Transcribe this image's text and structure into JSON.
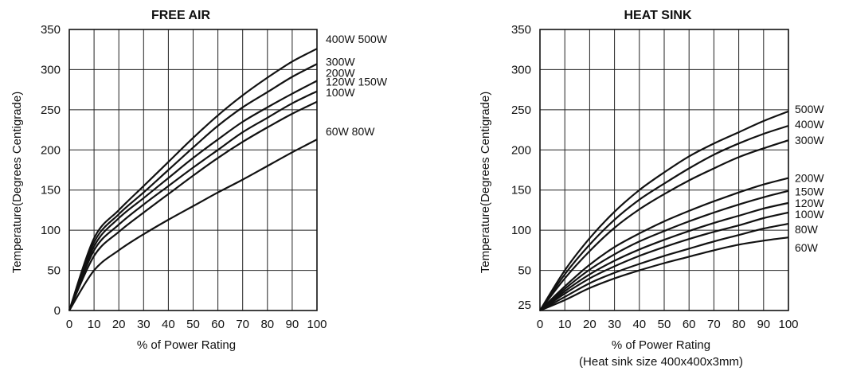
{
  "chart_data": [
    {
      "type": "line",
      "title": "FREE AIR",
      "xlabel": "% of Power Rating",
      "ylabel": "Temperature(Degrees Centigrade)",
      "note": "",
      "xlim": [
        0,
        100
      ],
      "ylim": [
        0,
        350
      ],
      "x_ticks": [
        0,
        10,
        20,
        30,
        40,
        50,
        60,
        70,
        80,
        90,
        100
      ],
      "y_ticks": [
        0,
        50,
        100,
        150,
        200,
        250,
        300,
        350
      ],
      "grid": true,
      "series": [
        {
          "name": "400W 500W",
          "x": [
            0,
            10,
            20,
            30,
            40,
            50,
            60,
            70,
            80,
            90,
            100
          ],
          "y": [
            0,
            90,
            125,
            155,
            185,
            215,
            243,
            268,
            290,
            310,
            326
          ]
        },
        {
          "name": "300W",
          "x": [
            0,
            10,
            20,
            30,
            40,
            50,
            60,
            70,
            80,
            90,
            100
          ],
          "y": [
            0,
            85,
            120,
            147,
            175,
            203,
            230,
            253,
            272,
            291,
            307
          ]
        },
        {
          "name": "200W",
          "x": [
            0,
            10,
            20,
            30,
            40,
            50,
            60,
            70,
            80,
            90,
            100
          ],
          "y": [
            0,
            80,
            115,
            140,
            165,
            190,
            213,
            235,
            253,
            270,
            286
          ]
        },
        {
          "name": "120W 150W",
          "x": [
            0,
            10,
            20,
            30,
            40,
            50,
            60,
            70,
            80,
            90,
            100
          ],
          "y": [
            0,
            75,
            107,
            132,
            155,
            178,
            200,
            222,
            240,
            258,
            273
          ]
        },
        {
          "name": "100W",
          "x": [
            0,
            10,
            20,
            30,
            40,
            50,
            60,
            70,
            80,
            90,
            100
          ],
          "y": [
            0,
            68,
            98,
            122,
            145,
            168,
            190,
            210,
            228,
            245,
            260
          ]
        },
        {
          "name": "60W 80W",
          "x": [
            0,
            10,
            20,
            30,
            40,
            50,
            60,
            70,
            80,
            90,
            100
          ],
          "y": [
            0,
            50,
            75,
            95,
            113,
            130,
            147,
            163,
            180,
            197,
            213
          ]
        }
      ]
    },
    {
      "type": "line",
      "title": "HEAT SINK",
      "xlabel": "% of Power Rating",
      "ylabel": "Temperature(Degrees Centigrade)",
      "note": "(Heat sink size 400x400x3mm)",
      "xlim": [
        0,
        100
      ],
      "ylim": [
        0,
        350
      ],
      "x_ticks": [
        0,
        10,
        20,
        30,
        40,
        50,
        60,
        70,
        80,
        90,
        100
      ],
      "y_ticks": [
        50,
        100,
        150,
        200,
        250,
        300,
        350
      ],
      "y_tick_labels_extra": [
        {
          "value": 0,
          "label": "25"
        }
      ],
      "grid": true,
      "series": [
        {
          "name": "500W",
          "x": [
            0,
            10,
            20,
            30,
            40,
            50,
            60,
            70,
            80,
            90,
            100
          ],
          "y": [
            0,
            50,
            90,
            123,
            150,
            172,
            192,
            208,
            222,
            236,
            248
          ]
        },
        {
          "name": "400W",
          "x": [
            0,
            10,
            20,
            30,
            40,
            50,
            60,
            70,
            80,
            90,
            100
          ],
          "y": [
            0,
            45,
            82,
            113,
            138,
            158,
            177,
            194,
            208,
            220,
            230
          ]
        },
        {
          "name": "300W",
          "x": [
            0,
            10,
            20,
            30,
            40,
            50,
            60,
            70,
            80,
            90,
            100
          ],
          "y": [
            0,
            40,
            74,
            103,
            126,
            145,
            162,
            177,
            191,
            202,
            212
          ]
        },
        {
          "name": "200W",
          "x": [
            0,
            10,
            20,
            30,
            40,
            50,
            60,
            70,
            80,
            90,
            100
          ],
          "y": [
            0,
            30,
            57,
            79,
            96,
            111,
            124,
            136,
            147,
            157,
            165
          ]
        },
        {
          "name": "150W",
          "x": [
            0,
            10,
            20,
            30,
            40,
            50,
            60,
            70,
            80,
            90,
            100
          ],
          "y": [
            0,
            27,
            51,
            70,
            86,
            99,
            111,
            122,
            132,
            141,
            149
          ]
        },
        {
          "name": "120W",
          "x": [
            0,
            10,
            20,
            30,
            40,
            50,
            60,
            70,
            80,
            90,
            100
          ],
          "y": [
            0,
            24,
            45,
            62,
            76,
            88,
            99,
            109,
            118,
            127,
            134
          ]
        },
        {
          "name": "100W",
          "x": [
            0,
            10,
            20,
            30,
            40,
            50,
            60,
            70,
            80,
            90,
            100
          ],
          "y": [
            0,
            21,
            40,
            55,
            68,
            79,
            89,
            98,
            106,
            115,
            122
          ]
        },
        {
          "name": "80W",
          "x": [
            0,
            10,
            20,
            30,
            40,
            50,
            60,
            70,
            80,
            90,
            100
          ],
          "y": [
            0,
            17,
            34,
            47,
            58,
            68,
            77,
            86,
            94,
            102,
            108
          ]
        },
        {
          "name": "60W",
          "x": [
            0,
            10,
            20,
            30,
            40,
            50,
            60,
            70,
            80,
            90,
            100
          ],
          "y": [
            0,
            13,
            28,
            40,
            50,
            59,
            67,
            75,
            82,
            87,
            91
          ]
        }
      ]
    }
  ]
}
